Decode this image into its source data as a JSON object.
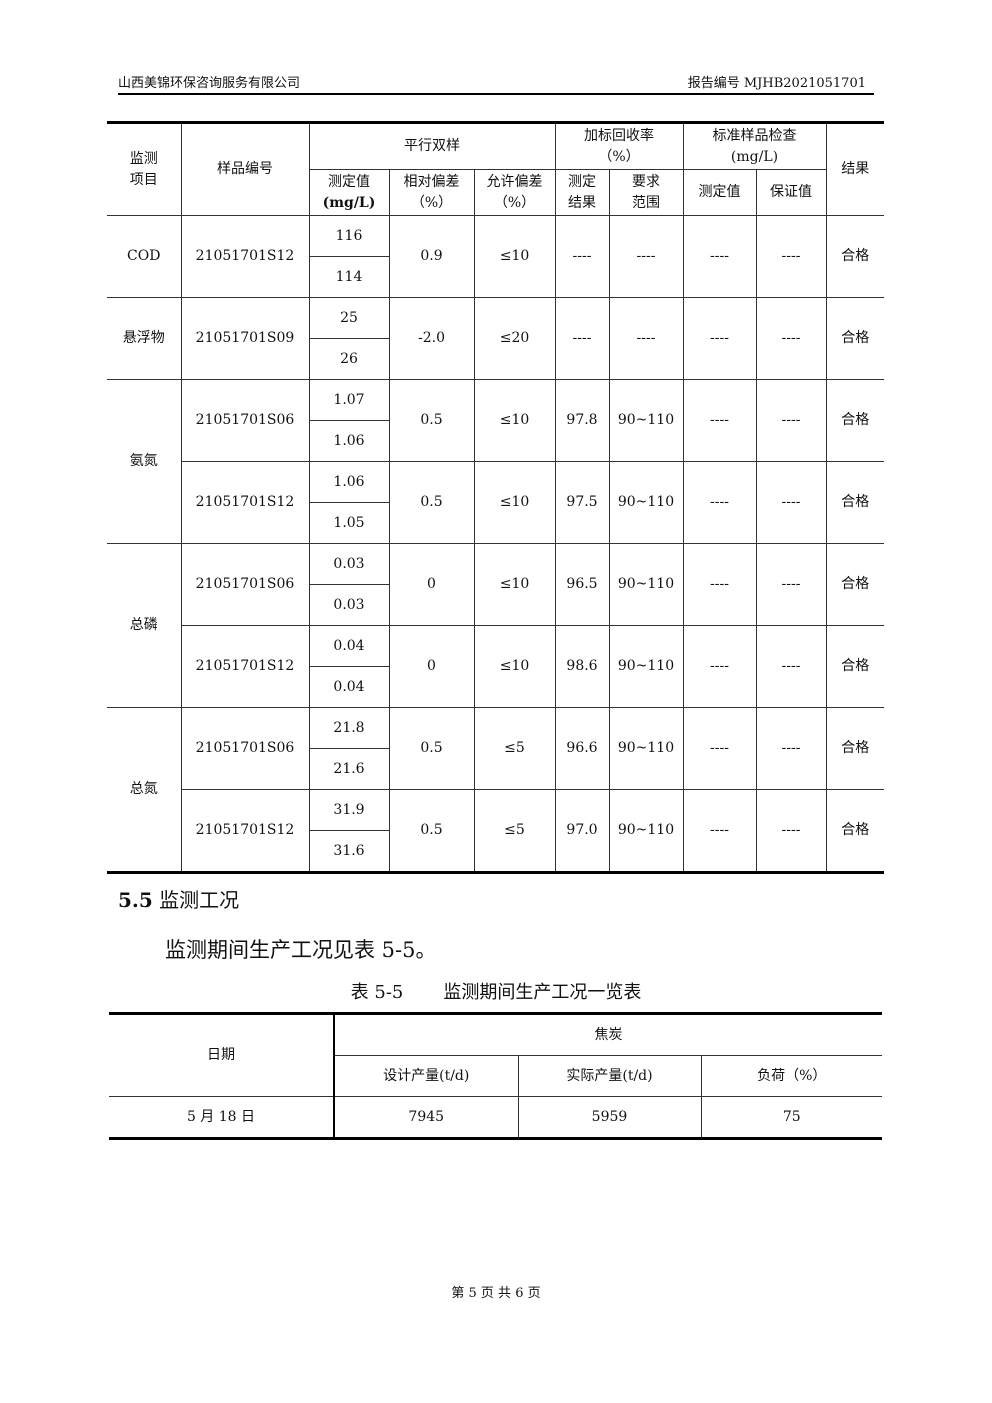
{
  "header": {
    "company": "山西美锦环保咨询服务有限公司",
    "report_no": "报告编号 MJHB2021051701"
  },
  "qc_table": {
    "headers": {
      "item": "监测项目",
      "sample_no": "样品编号",
      "parallel": "平行双样",
      "spike": "加标回收率（%）",
      "standard": "标准样品检查(mg/L)",
      "result": "结果",
      "measured": "测定值",
      "measured_unit": "(mg/L)",
      "rel_dev": "相对偏差（%）",
      "allow_dev": "允许偏差（%）",
      "spike_result": "测定结果",
      "spike_range": "要求范围",
      "std_measured": "测定值",
      "std_guaranteed": "保证值"
    },
    "groups": [
      {
        "item": "COD",
        "samples": [
          {
            "no": "21051701S12",
            "v1": "116",
            "v2": "114",
            "rel": "0.9",
            "allow": "≤10",
            "spike": "----",
            "range": "----",
            "std_m": "----",
            "std_g": "----",
            "result": "合格"
          }
        ]
      },
      {
        "item": "悬浮物",
        "samples": [
          {
            "no": "21051701S09",
            "v1": "25",
            "v2": "26",
            "rel": "-2.0",
            "allow": "≤20",
            "spike": "----",
            "range": "----",
            "std_m": "----",
            "std_g": "----",
            "result": "合格"
          }
        ]
      },
      {
        "item": "氨氮",
        "samples": [
          {
            "no": "21051701S06",
            "v1": "1.07",
            "v2": "1.06",
            "rel": "0.5",
            "allow": "≤10",
            "spike": "97.8",
            "range": "90~110",
            "std_m": "----",
            "std_g": "----",
            "result": "合格"
          },
          {
            "no": "21051701S12",
            "v1": "1.06",
            "v2": "1.05",
            "rel": "0.5",
            "allow": "≤10",
            "spike": "97.5",
            "range": "90~110",
            "std_m": "----",
            "std_g": "----",
            "result": "合格"
          }
        ]
      },
      {
        "item": "总磷",
        "samples": [
          {
            "no": "21051701S06",
            "v1": "0.03",
            "v2": "0.03",
            "rel": "0",
            "allow": "≤10",
            "spike": "96.5",
            "range": "90~110",
            "std_m": "----",
            "std_g": "----",
            "result": "合格"
          },
          {
            "no": "21051701S12",
            "v1": "0.04",
            "v2": "0.04",
            "rel": "0",
            "allow": "≤10",
            "spike": "98.6",
            "range": "90~110",
            "std_m": "----",
            "std_g": "----",
            "result": "合格"
          }
        ]
      },
      {
        "item": "总氮",
        "samples": [
          {
            "no": "21051701S06",
            "v1": "21.8",
            "v2": "21.6",
            "rel": "0.5",
            "allow": "≤5",
            "spike": "96.6",
            "range": "90~110",
            "std_m": "----",
            "std_g": "----",
            "result": "合格"
          },
          {
            "no": "21051701S12",
            "v1": "31.9",
            "v2": "31.6",
            "rel": "0.5",
            "allow": "≤5",
            "spike": "97.0",
            "range": "90~110",
            "std_m": "----",
            "std_g": "----",
            "result": "合格"
          }
        ]
      }
    ]
  },
  "section": {
    "num": "5.5",
    "title": "监测工况",
    "para": "监测期间生产工况见表 5-5。"
  },
  "table55": {
    "caption_no": "表 5-5",
    "caption": "监测期间生产工况一览表",
    "date_h": "日期",
    "group_h": "焦炭",
    "design_h": "设计产量(t/d)",
    "actual_h": "实际产量(t/d)",
    "load_h": "负荷（%）",
    "rows": [
      {
        "date": "5 月 18 日",
        "design": "7945",
        "actual": "5959",
        "load": "75"
      }
    ]
  },
  "footer": "第 5 页 共 6 页"
}
